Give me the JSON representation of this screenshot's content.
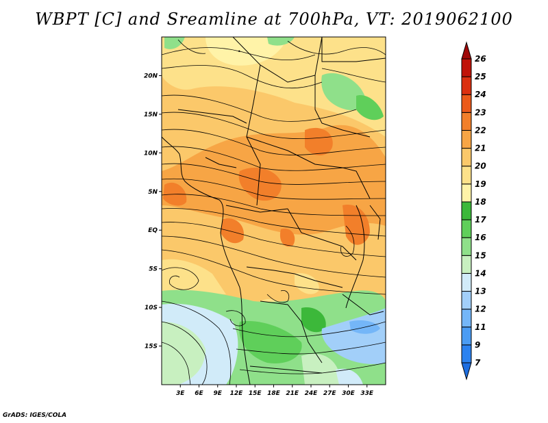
{
  "title": "WBPT [C] and Sreamline at 700hPa, VT: 2019062100",
  "credit": "GrADS: IGES/COLA",
  "map": {
    "lon_range": [
      0,
      36
    ],
    "lat_range": [
      -20,
      25
    ],
    "x_ticks": [
      {
        "label": "3E",
        "value": 3
      },
      {
        "label": "6E",
        "value": 6
      },
      {
        "label": "9E",
        "value": 9
      },
      {
        "label": "12E",
        "value": 12
      },
      {
        "label": "15E",
        "value": 15
      },
      {
        "label": "18E",
        "value": 18
      },
      {
        "label": "21E",
        "value": 21
      },
      {
        "label": "24E",
        "value": 24
      },
      {
        "label": "27E",
        "value": 27
      },
      {
        "label": "30E",
        "value": 30
      },
      {
        "label": "33E",
        "value": 33
      }
    ],
    "y_ticks": [
      {
        "label": "20N",
        "value": 20
      },
      {
        "label": "15N",
        "value": 15
      },
      {
        "label": "10N",
        "value": 10
      },
      {
        "label": "5N",
        "value": 5
      },
      {
        "label": "EQ",
        "value": 0
      },
      {
        "label": "5S",
        "value": -5
      },
      {
        "label": "10S",
        "value": -10
      },
      {
        "label": "15S",
        "value": -15
      }
    ]
  },
  "colorbar": {
    "levels": [
      "7",
      "9",
      "11",
      "12",
      "13",
      "14",
      "15",
      "16",
      "17",
      "18",
      "19",
      "20",
      "21",
      "22",
      "23",
      "24",
      "25",
      "26"
    ],
    "colors": [
      "#1e6ee0",
      "#2b82f0",
      "#4a9cf4",
      "#74b6f8",
      "#a2cff9",
      "#d1ebf9",
      "#c8f0c0",
      "#8fe08a",
      "#5fcf5a",
      "#3cb83a",
      "#fff3a8",
      "#fde18a",
      "#fbc86a",
      "#f7a545",
      "#f27f2a",
      "#eb5a1a",
      "#db3010",
      "#c01308",
      "#a00808"
    ],
    "extend": "both"
  }
}
